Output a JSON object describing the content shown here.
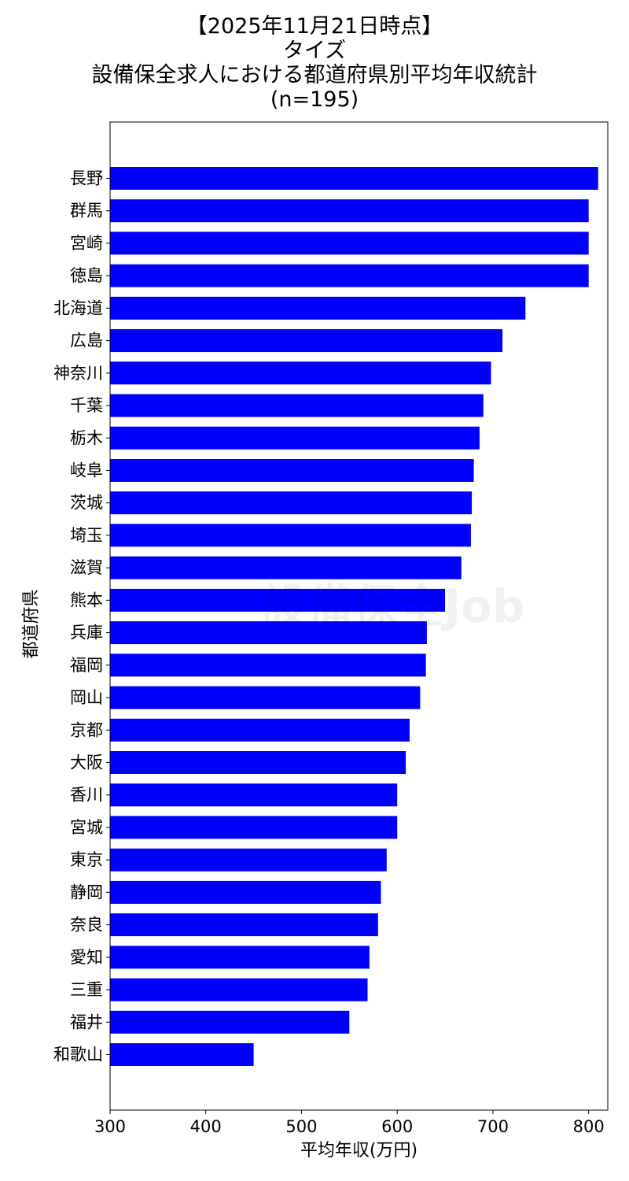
{
  "chart_data": {
    "type": "bar",
    "orientation": "horizontal",
    "title_lines": [
      "【2025年11月21日時点】",
      "タイズ",
      "設備保全求人における都道府県別平均年収統計",
      "(n=195)"
    ],
    "xlabel": "平均年収(万円)",
    "ylabel": "都道府県",
    "xlim": [
      300,
      820
    ],
    "xticks": [
      300,
      400,
      500,
      600,
      700,
      800
    ],
    "bar_color": "#0000ff",
    "grid": false,
    "categories": [
      "長野",
      "群馬",
      "宮崎",
      "徳島",
      "北海道",
      "広島",
      "神奈川",
      "千葉",
      "栃木",
      "岐阜",
      "茨城",
      "埼玉",
      "滋賀",
      "熊本",
      "兵庫",
      "福岡",
      "岡山",
      "京都",
      "大阪",
      "香川",
      "宮城",
      "東京",
      "静岡",
      "奈良",
      "愛知",
      "三重",
      "福井",
      "和歌山"
    ],
    "values": [
      810,
      800,
      800,
      800,
      734,
      710,
      698,
      690,
      686,
      680,
      678,
      677,
      667,
      650,
      631,
      630,
      624,
      613,
      609,
      600,
      600,
      589,
      583,
      580,
      571,
      569,
      550,
      450
    ],
    "watermark": "設備保全Job"
  }
}
